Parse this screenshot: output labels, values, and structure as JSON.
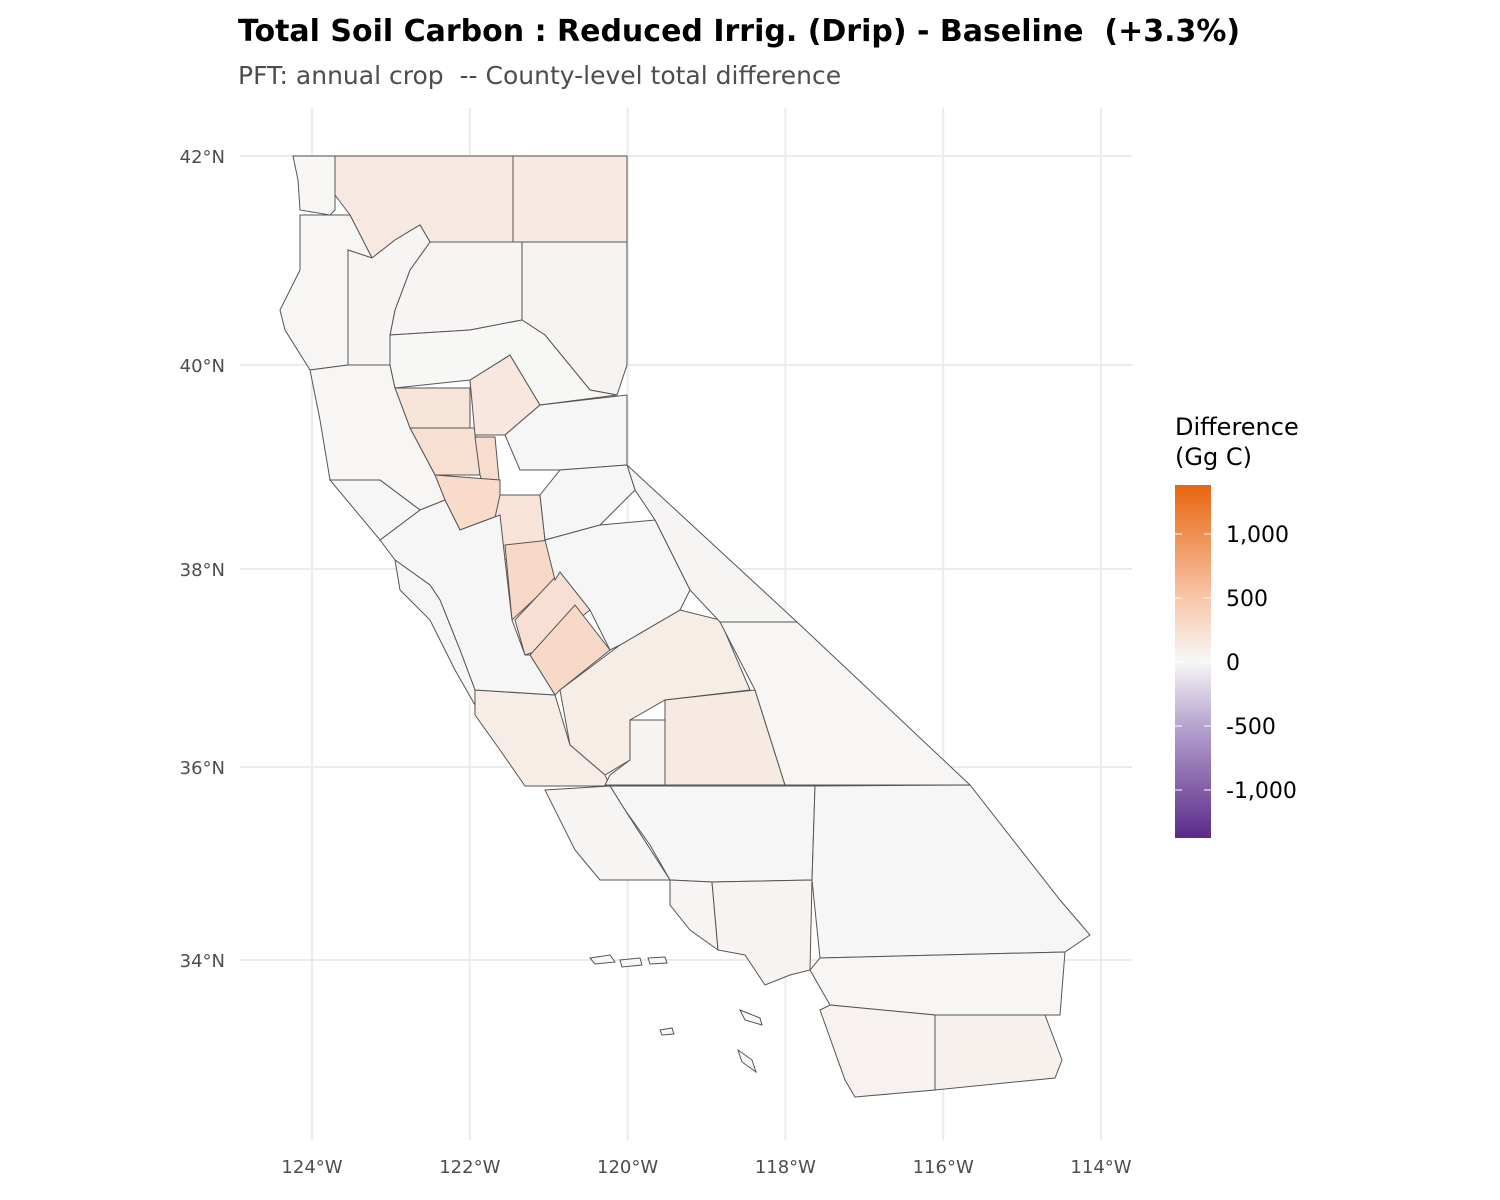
{
  "chart_data": {
    "type": "choropleth",
    "title": "Total Soil Carbon : Reduced Irrig. (Drip) - Baseline  (+3.3%)",
    "subtitle": "PFT: annual crop  -- County-level total difference",
    "x_ticks": [
      "124°W",
      "122°W",
      "120°W",
      "118°W",
      "116°W",
      "114°W"
    ],
    "x_tick_values": [
      -124,
      -122,
      -120,
      -118,
      -116,
      -114
    ],
    "y_ticks": [
      "42°N",
      "40°N",
      "38°N",
      "36°N",
      "34°N"
    ],
    "y_tick_values": [
      42,
      40,
      38,
      36,
      34
    ],
    "grid": true,
    "legend": {
      "title_line1": "Difference",
      "title_line2": "(Gg C)",
      "labels": [
        "1,000",
        "500",
        "0",
        "-500",
        "-1,000"
      ],
      "values": [
        1000,
        500,
        0,
        -500,
        -1000
      ],
      "range": [
        -1380,
        1380
      ],
      "placement": "right",
      "colors": {
        "low": "#5b2a8a",
        "mid_low": "#b7a4cf",
        "mid": "#f7f7f7",
        "mid_high": "#f8c6aa",
        "high": "#e8650f"
      }
    },
    "county_values": [
      200,
      180,
      60,
      40,
      20,
      20,
      30,
      260,
      330,
      220,
      380,
      400,
      280,
      430,
      320,
      440,
      140,
      180,
      150,
      60,
      10,
      10,
      20,
      70,
      80,
      30,
      40,
      50,
      30,
      20,
      15,
      5,
      10,
      10,
      10,
      10,
      10,
      10
    ]
  }
}
